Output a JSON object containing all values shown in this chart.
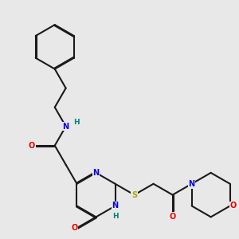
{
  "bg_color": "#e8e8e8",
  "bond_color": "#1a1a1a",
  "bond_width": 1.5,
  "dbo": 0.012,
  "atom_colors": {
    "N": "#0000ee",
    "O": "#ee0000",
    "S": "#aaaa00",
    "H": "#008080",
    "C": "#1a1a1a"
  },
  "font_size": 7.0
}
